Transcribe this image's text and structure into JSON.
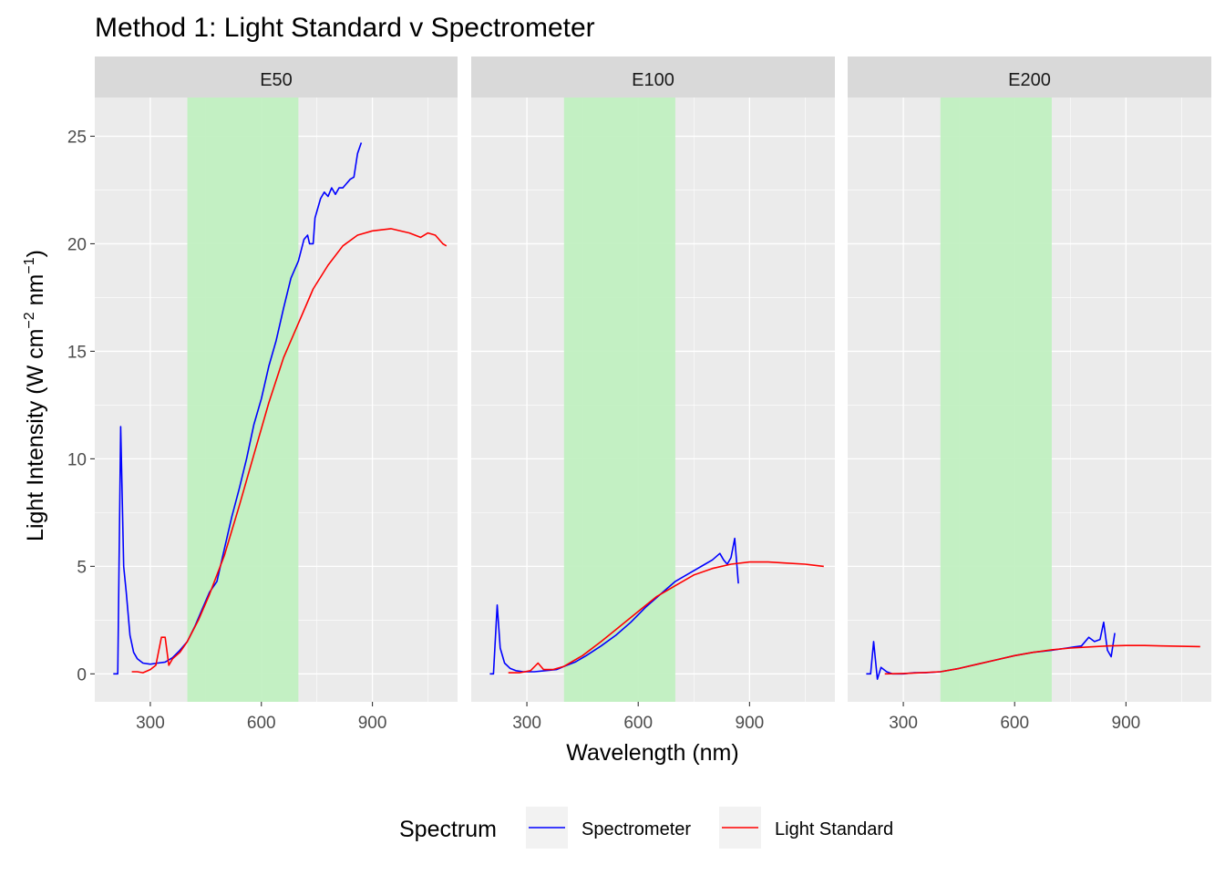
{
  "chart_data": {
    "type": "line",
    "title": "Method 1: Light Standard v Spectrometer",
    "xlabel": "Wavelength (nm)",
    "ylabel": {
      "main": "Light Intensity (W cm",
      "sup1": "−2",
      "mid": " nm",
      "sup2": "−1",
      "end": ")"
    },
    "xlim": [
      150,
      1130
    ],
    "ylim": [
      -1.3,
      26.8
    ],
    "x_ticks": [
      300,
      600,
      900
    ],
    "x_tick_labels": [
      "300",
      "600",
      "900"
    ],
    "y_ticks": [
      0,
      5,
      10,
      15,
      20,
      25
    ],
    "y_tick_labels": [
      "0",
      "5",
      "10",
      "15",
      "20",
      "25"
    ],
    "grid": true,
    "highlight_band": {
      "x": [
        400,
        700
      ],
      "color": "#bff0bf"
    },
    "legend": {
      "title": "Spectrum",
      "placement": "bottom",
      "entries": [
        {
          "label": "Spectrometer",
          "color": "#0000ff"
        },
        {
          "label": "Light Standard",
          "color": "#ff0000"
        }
      ]
    },
    "colors": {
      "panel_bg": "#ebebeb",
      "strip_bg": "#d9d9d9",
      "grid_major": "#ffffff",
      "Spectrometer": "#0000ff",
      "Light Standard": "#ff0000"
    },
    "panels": [
      {
        "label": "E50",
        "series": [
          {
            "name": "Spectrometer",
            "points": [
              [
                200,
                0
              ],
              [
                212,
                0
              ],
              [
                220,
                11.5
              ],
              [
                228,
                5
              ],
              [
                235,
                3.8
              ],
              [
                245,
                1.8
              ],
              [
                255,
                1.0
              ],
              [
                265,
                0.7
              ],
              [
                280,
                0.5
              ],
              [
                300,
                0.45
              ],
              [
                320,
                0.5
              ],
              [
                340,
                0.55
              ],
              [
                360,
                0.75
              ],
              [
                380,
                1.1
              ],
              [
                400,
                1.5
              ],
              [
                420,
                2.2
              ],
              [
                440,
                3.0
              ],
              [
                460,
                3.8
              ],
              [
                480,
                4.3
              ],
              [
                500,
                5.8
              ],
              [
                520,
                7.3
              ],
              [
                540,
                8.6
              ],
              [
                560,
                10.0
              ],
              [
                580,
                11.6
              ],
              [
                600,
                12.8
              ],
              [
                620,
                14.3
              ],
              [
                640,
                15.5
              ],
              [
                660,
                17.0
              ],
              [
                680,
                18.4
              ],
              [
                700,
                19.2
              ],
              [
                715,
                20.2
              ],
              [
                725,
                20.4
              ],
              [
                730,
                20.0
              ],
              [
                740,
                20.0
              ],
              [
                745,
                21.2
              ],
              [
                760,
                22.1
              ],
              [
                770,
                22.4
              ],
              [
                780,
                22.2
              ],
              [
                790,
                22.6
              ],
              [
                800,
                22.3
              ],
              [
                810,
                22.6
              ],
              [
                820,
                22.6
              ],
              [
                830,
                22.8
              ],
              [
                840,
                23.0
              ],
              [
                850,
                23.1
              ],
              [
                860,
                24.2
              ],
              [
                870,
                24.7
              ]
            ]
          },
          {
            "name": "Light Standard",
            "points": [
              [
                250,
                0.1
              ],
              [
                265,
                0.1
              ],
              [
                280,
                0.05
              ],
              [
                300,
                0.2
              ],
              [
                315,
                0.4
              ],
              [
                330,
                1.7
              ],
              [
                340,
                1.7
              ],
              [
                350,
                0.4
              ],
              [
                360,
                0.7
              ],
              [
                380,
                1.0
              ],
              [
                400,
                1.5
              ],
              [
                430,
                2.5
              ],
              [
                460,
                3.7
              ],
              [
                500,
                5.5
              ],
              [
                540,
                7.8
              ],
              [
                580,
                10.2
              ],
              [
                620,
                12.6
              ],
              [
                660,
                14.7
              ],
              [
                700,
                16.3
              ],
              [
                740,
                17.9
              ],
              [
                780,
                19.0
              ],
              [
                820,
                19.9
              ],
              [
                860,
                20.4
              ],
              [
                900,
                20.6
              ],
              [
                950,
                20.7
              ],
              [
                1000,
                20.5
              ],
              [
                1030,
                20.3
              ],
              [
                1050,
                20.5
              ],
              [
                1070,
                20.4
              ],
              [
                1090,
                20.0
              ],
              [
                1100,
                19.9
              ]
            ]
          }
        ]
      },
      {
        "label": "E100",
        "series": [
          {
            "name": "Spectrometer",
            "points": [
              [
                200,
                0
              ],
              [
                210,
                0
              ],
              [
                220,
                3.2
              ],
              [
                228,
                1.2
              ],
              [
                240,
                0.5
              ],
              [
                255,
                0.25
              ],
              [
                270,
                0.15
              ],
              [
                290,
                0.1
              ],
              [
                320,
                0.1
              ],
              [
                350,
                0.15
              ],
              [
                380,
                0.2
              ],
              [
                400,
                0.35
              ],
              [
                430,
                0.55
              ],
              [
                460,
                0.85
              ],
              [
                500,
                1.3
              ],
              [
                540,
                1.8
              ],
              [
                580,
                2.4
              ],
              [
                620,
                3.1
              ],
              [
                660,
                3.7
              ],
              [
                700,
                4.3
              ],
              [
                740,
                4.7
              ],
              [
                760,
                4.9
              ],
              [
                780,
                5.1
              ],
              [
                800,
                5.3
              ],
              [
                820,
                5.6
              ],
              [
                830,
                5.3
              ],
              [
                840,
                5.1
              ],
              [
                850,
                5.4
              ],
              [
                860,
                6.3
              ],
              [
                870,
                4.2
              ]
            ]
          },
          {
            "name": "Light Standard",
            "points": [
              [
                250,
                0.05
              ],
              [
                280,
                0.05
              ],
              [
                310,
                0.15
              ],
              [
                330,
                0.5
              ],
              [
                345,
                0.2
              ],
              [
                370,
                0.2
              ],
              [
                400,
                0.35
              ],
              [
                450,
                0.85
              ],
              [
                500,
                1.5
              ],
              [
                550,
                2.2
              ],
              [
                600,
                2.9
              ],
              [
                650,
                3.6
              ],
              [
                700,
                4.1
              ],
              [
                750,
                4.6
              ],
              [
                800,
                4.9
              ],
              [
                850,
                5.1
              ],
              [
                900,
                5.2
              ],
              [
                950,
                5.2
              ],
              [
                1000,
                5.15
              ],
              [
                1050,
                5.1
              ],
              [
                1100,
                5.0
              ]
            ]
          }
        ]
      },
      {
        "label": "E200",
        "series": [
          {
            "name": "Spectrometer",
            "points": [
              [
                200,
                0
              ],
              [
                212,
                0
              ],
              [
                220,
                1.5
              ],
              [
                230,
                -0.25
              ],
              [
                240,
                0.3
              ],
              [
                255,
                0.1
              ],
              [
                270,
                0
              ],
              [
                300,
                0
              ],
              [
                330,
                0.05
              ],
              [
                360,
                0.05
              ],
              [
                400,
                0.1
              ],
              [
                450,
                0.25
              ],
              [
                500,
                0.45
              ],
              [
                550,
                0.65
              ],
              [
                600,
                0.85
              ],
              [
                650,
                1.0
              ],
              [
                700,
                1.1
              ],
              [
                740,
                1.2
              ],
              [
                760,
                1.25
              ],
              [
                780,
                1.3
              ],
              [
                800,
                1.7
              ],
              [
                815,
                1.5
              ],
              [
                830,
                1.6
              ],
              [
                840,
                2.4
              ],
              [
                850,
                1.1
              ],
              [
                860,
                0.8
              ],
              [
                870,
                1.9
              ]
            ]
          },
          {
            "name": "Light Standard",
            "points": [
              [
                250,
                0
              ],
              [
                300,
                0.02
              ],
              [
                350,
                0.05
              ],
              [
                400,
                0.1
              ],
              [
                450,
                0.25
              ],
              [
                500,
                0.45
              ],
              [
                550,
                0.65
              ],
              [
                600,
                0.85
              ],
              [
                650,
                1.0
              ],
              [
                700,
                1.12
              ],
              [
                750,
                1.2
              ],
              [
                800,
                1.25
              ],
              [
                850,
                1.3
              ],
              [
                900,
                1.32
              ],
              [
                950,
                1.32
              ],
              [
                1000,
                1.3
              ],
              [
                1050,
                1.28
              ],
              [
                1100,
                1.27
              ]
            ]
          }
        ]
      }
    ]
  }
}
